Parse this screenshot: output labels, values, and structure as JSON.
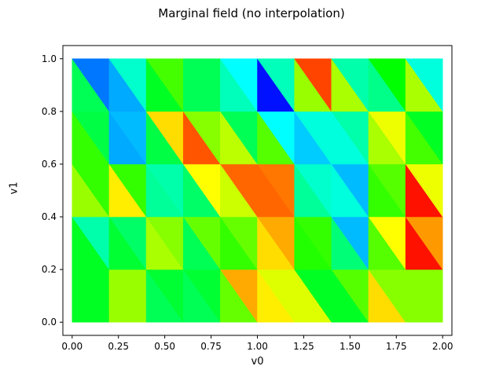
{
  "chart_data": {
    "type": "heatmap",
    "title": "Marginal field (no interpolation)",
    "xlabel": "v0",
    "ylabel": "v1",
    "xlim": [
      -0.05,
      2.05
    ],
    "ylim": [
      -0.05,
      1.05
    ],
    "xticks": [
      "0.00",
      "0.25",
      "0.50",
      "0.75",
      "1.00",
      "1.25",
      "1.50",
      "1.75",
      "2.00"
    ],
    "xtick_values": [
      0,
      0.25,
      0.5,
      0.75,
      1.0,
      1.25,
      1.5,
      1.75,
      2.0
    ],
    "yticks": [
      "0.0",
      "0.2",
      "0.4",
      "0.6",
      "0.8",
      "1.0"
    ],
    "ytick_values": [
      0,
      0.2,
      0.4,
      0.6,
      0.8,
      1.0
    ],
    "grid": false,
    "colormap": "hsv-like",
    "cell_size": [
      0.2,
      0.2
    ],
    "cells_note": "Each square cell is split by its diagonal from top-left to bottom-right; 'ul' is the upper-left triangle, 'lr' the lower-right triangle.",
    "cells": [
      {
        "row": 0,
        "col": 0,
        "ul": "#00ff22",
        "lr": "#00ff22"
      },
      {
        "row": 0,
        "col": 1,
        "ul": "#99ff00",
        "lr": "#99ff00"
      },
      {
        "row": 0,
        "col": 2,
        "ul": "#00ff33",
        "lr": "#00ff55"
      },
      {
        "row": 0,
        "col": 3,
        "ul": "#00ff33",
        "lr": "#00ff55"
      },
      {
        "row": 0,
        "col": 4,
        "ul": "#ffaa00",
        "lr": "#66ff00"
      },
      {
        "row": 0,
        "col": 5,
        "ul": "#ddff00",
        "lr": "#ffee00"
      },
      {
        "row": 0,
        "col": 6,
        "ul": "#00ff22",
        "lr": "#ddff00"
      },
      {
        "row": 0,
        "col": 7,
        "ul": "#55ff00",
        "lr": "#00ff22"
      },
      {
        "row": 0,
        "col": 8,
        "ul": "#88ff00",
        "lr": "#ffdd00"
      },
      {
        "row": 0,
        "col": 9,
        "ul": "#88ff00",
        "lr": "#88ff00"
      },
      {
        "row": 1,
        "col": 0,
        "ul": "#00ffaa",
        "lr": "#00ff22"
      },
      {
        "row": 1,
        "col": 1,
        "ul": "#00ff66",
        "lr": "#00ff33"
      },
      {
        "row": 1,
        "col": 2,
        "ul": "#88ff00",
        "lr": "#aaff00"
      },
      {
        "row": 1,
        "col": 3,
        "ul": "#66ff00",
        "lr": "#00ff55"
      },
      {
        "row": 1,
        "col": 4,
        "ul": "#66ff00",
        "lr": "#33ff00"
      },
      {
        "row": 1,
        "col": 5,
        "ul": "#ffaa00",
        "lr": "#ffdd00"
      },
      {
        "row": 1,
        "col": 6,
        "ul": "#33ff00",
        "lr": "#22ff00"
      },
      {
        "row": 1,
        "col": 7,
        "ul": "#00bbff",
        "lr": "#00ff77"
      },
      {
        "row": 1,
        "col": 8,
        "ul": "#ffff00",
        "lr": "#55ff00"
      },
      {
        "row": 1,
        "col": 9,
        "ul": "#ff9900",
        "lr": "#ff1100"
      },
      {
        "row": 2,
        "col": 0,
        "ul": "#33ff00",
        "lr": "#99ff00"
      },
      {
        "row": 2,
        "col": 1,
        "ul": "#33ff00",
        "lr": "#ffee00"
      },
      {
        "row": 2,
        "col": 2,
        "ul": "#00ffaa",
        "lr": "#00ff99"
      },
      {
        "row": 2,
        "col": 3,
        "ul": "#ffff00",
        "lr": "#00ff66"
      },
      {
        "row": 2,
        "col": 4,
        "ul": "#ff6600",
        "lr": "#ccff00"
      },
      {
        "row": 2,
        "col": 5,
        "ul": "#ff7700",
        "lr": "#ff6600"
      },
      {
        "row": 2,
        "col": 6,
        "ul": "#00ffcc",
        "lr": "#00ff99"
      },
      {
        "row": 2,
        "col": 7,
        "ul": "#00bbff",
        "lr": "#00ffdd"
      },
      {
        "row": 2,
        "col": 8,
        "ul": "#55ff00",
        "lr": "#33ff00"
      },
      {
        "row": 2,
        "col": 9,
        "ul": "#eeff00",
        "lr": "#ff1100"
      },
      {
        "row": 3,
        "col": 0,
        "ul": "#00ff44",
        "lr": "#33ff00"
      },
      {
        "row": 3,
        "col": 1,
        "ul": "#00bbff",
        "lr": "#00aaff"
      },
      {
        "row": 3,
        "col": 2,
        "ul": "#ffdd00",
        "lr": "#00ff44"
      },
      {
        "row": 3,
        "col": 3,
        "ul": "#88ff00",
        "lr": "#ff5500"
      },
      {
        "row": 3,
        "col": 4,
        "ul": "#00ff55",
        "lr": "#bbff00"
      },
      {
        "row": 3,
        "col": 5,
        "ul": "#00ffff",
        "lr": "#55ff00"
      },
      {
        "row": 3,
        "col": 6,
        "ul": "#00ffdd",
        "lr": "#00ccff"
      },
      {
        "row": 3,
        "col": 7,
        "ul": "#00ffaa",
        "lr": "#00ffdd"
      },
      {
        "row": 3,
        "col": 8,
        "ul": "#eeff00",
        "lr": "#aaff00"
      },
      {
        "row": 3,
        "col": 9,
        "ul": "#00ff22",
        "lr": "#44ff00"
      },
      {
        "row": 4,
        "col": 0,
        "ul": "#0077ff",
        "lr": "#00ff55"
      },
      {
        "row": 4,
        "col": 1,
        "ul": "#00ffcc",
        "lr": "#00aaff"
      },
      {
        "row": 4,
        "col": 2,
        "ul": "#44ff00",
        "lr": "#00ff22"
      },
      {
        "row": 4,
        "col": 3,
        "ul": "#00ff55",
        "lr": "#00ff55"
      },
      {
        "row": 4,
        "col": 4,
        "ul": "#00ffff",
        "lr": "#00ffbb"
      },
      {
        "row": 4,
        "col": 5,
        "ul": "#00ffbb",
        "lr": "#0011ff"
      },
      {
        "row": 4,
        "col": 6,
        "ul": "#ff4400",
        "lr": "#99ff00"
      },
      {
        "row": 4,
        "col": 7,
        "ul": "#00ffaa",
        "lr": "#aaff00"
      },
      {
        "row": 4,
        "col": 8,
        "ul": "#00ff00",
        "lr": "#00ff88"
      },
      {
        "row": 4,
        "col": 9,
        "ul": "#00ffdd",
        "lr": "#aaff00"
      }
    ]
  }
}
